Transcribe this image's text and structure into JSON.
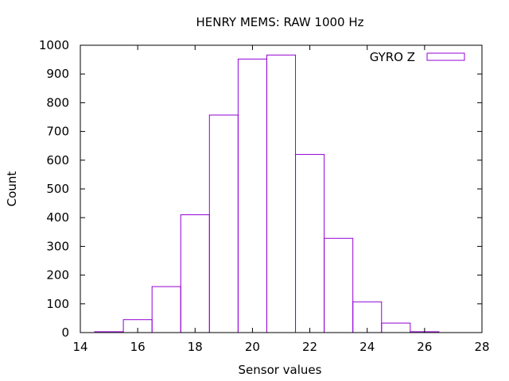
{
  "chart_data": {
    "type": "bar",
    "title": "HENRY MEMS: RAW 1000 Hz",
    "xlabel": "Sensor values",
    "ylabel": "Count",
    "xlim": [
      14,
      28
    ],
    "ylim": [
      0,
      1000
    ],
    "xticks": [
      "14",
      "16",
      "18",
      "20",
      "22",
      "24",
      "26",
      "28"
    ],
    "yticks": [
      "0",
      "100",
      "200",
      "300",
      "400",
      "500",
      "600",
      "700",
      "800",
      "900",
      "1000"
    ],
    "bin_width": 1,
    "bins": [
      15,
      16,
      17,
      18,
      19,
      20,
      21,
      22,
      23,
      24,
      25,
      26
    ],
    "series": [
      {
        "name": "GYRO Z",
        "color": "#9400d3",
        "values": [
          3,
          45,
          160,
          410,
          757,
          952,
          966,
          620,
          328,
          107,
          33,
          3
        ]
      }
    ],
    "legend_position": "top-right",
    "grid": false
  }
}
